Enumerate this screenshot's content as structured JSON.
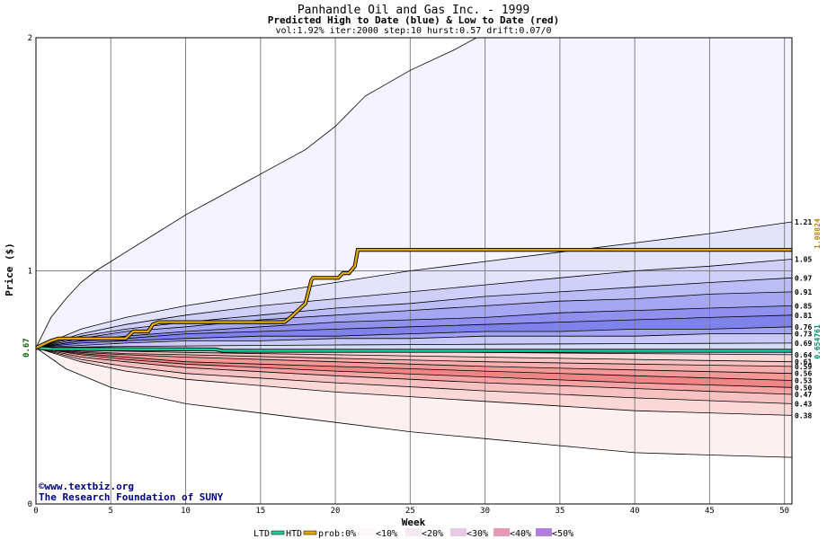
{
  "chart_data": {
    "type": "area",
    "title": "Panhandle Oil and Gas Inc. - 1999",
    "subtitle": "Predicted High to Date (blue) &  Low to Date (red)",
    "params": "vol:1.92% iter:2000 step:10 hurst:0.57 drift:0.07/0",
    "xlabel": "Week",
    "ylabel": "Price ($)",
    "xlim": [
      0,
      50.5
    ],
    "ylim": [
      0,
      2
    ],
    "x_ticks": [
      0,
      5,
      10,
      15,
      20,
      25,
      30,
      35,
      40,
      45,
      50
    ],
    "y_ticks": [
      0,
      1,
      2
    ],
    "start_price": 0.67,
    "start_price_label": "0.67",
    "htd_final_label": "1.08824",
    "ltd_final_label": "0.654761",
    "htd_color": "#b8860b",
    "ltd_color": "#008b6b",
    "credits": [
      "©www.textbiz.org",
      "The Research Foundation of SUNY"
    ],
    "legend": {
      "ltd": "LTD",
      "htd": "HTD",
      "prob_prefix": "prob:0%",
      "items": [
        "<10%",
        "<20%",
        "<30%",
        "<40%",
        "<50%"
      ]
    },
    "high_quantiles": [
      {
        "prob": 0,
        "label": "",
        "final": 2.6,
        "points": [
          [
            0,
            0.67
          ],
          [
            1,
            0.8
          ],
          [
            2,
            0.88
          ],
          [
            3,
            0.95
          ],
          [
            4,
            1.0
          ],
          [
            5,
            1.04
          ],
          [
            6,
            1.08
          ],
          [
            8,
            1.16
          ],
          [
            10,
            1.24
          ],
          [
            12,
            1.31
          ],
          [
            14,
            1.38
          ],
          [
            16,
            1.45
          ],
          [
            18,
            1.52
          ],
          [
            20,
            1.62
          ],
          [
            22,
            1.75
          ],
          [
            25,
            1.86
          ],
          [
            28,
            1.95
          ],
          [
            30,
            2.02
          ],
          [
            40,
            2.3
          ],
          [
            50.5,
            2.6
          ]
        ]
      },
      {
        "prob": 10,
        "label": "1.21",
        "final": 1.21,
        "points": [
          [
            0,
            0.67
          ],
          [
            3,
            0.75
          ],
          [
            6,
            0.8
          ],
          [
            10,
            0.85
          ],
          [
            15,
            0.9
          ],
          [
            20,
            0.95
          ],
          [
            25,
            1.0
          ],
          [
            30,
            1.04
          ],
          [
            35,
            1.08
          ],
          [
            40,
            1.12
          ],
          [
            45,
            1.16
          ],
          [
            50.5,
            1.21
          ]
        ]
      },
      {
        "prob": 20,
        "label": "1.05",
        "final": 1.05,
        "points": [
          [
            0,
            0.67
          ],
          [
            3,
            0.73
          ],
          [
            6,
            0.77
          ],
          [
            10,
            0.81
          ],
          [
            15,
            0.85
          ],
          [
            20,
            0.88
          ],
          [
            25,
            0.91
          ],
          [
            30,
            0.94
          ],
          [
            35,
            0.97
          ],
          [
            40,
            1.0
          ],
          [
            45,
            1.02
          ],
          [
            50.5,
            1.05
          ]
        ]
      },
      {
        "prob": 25,
        "label": "0.97",
        "final": 0.97,
        "points": [
          [
            0,
            0.67
          ],
          [
            3,
            0.72
          ],
          [
            6,
            0.75
          ],
          [
            10,
            0.78
          ],
          [
            15,
            0.81
          ],
          [
            20,
            0.84
          ],
          [
            25,
            0.86
          ],
          [
            30,
            0.89
          ],
          [
            35,
            0.91
          ],
          [
            40,
            0.93
          ],
          [
            45,
            0.95
          ],
          [
            50.5,
            0.97
          ]
        ]
      },
      {
        "prob": 30,
        "label": "0.91",
        "final": 0.91,
        "points": [
          [
            0,
            0.67
          ],
          [
            3,
            0.71
          ],
          [
            6,
            0.74
          ],
          [
            10,
            0.76
          ],
          [
            15,
            0.79
          ],
          [
            20,
            0.81
          ],
          [
            25,
            0.83
          ],
          [
            30,
            0.85
          ],
          [
            35,
            0.87
          ],
          [
            40,
            0.88
          ],
          [
            45,
            0.9
          ],
          [
            50.5,
            0.91
          ]
        ]
      },
      {
        "prob": 35,
        "label": "0.85",
        "final": 0.85,
        "points": [
          [
            0,
            0.67
          ],
          [
            3,
            0.7
          ],
          [
            6,
            0.72
          ],
          [
            10,
            0.74
          ],
          [
            15,
            0.76
          ],
          [
            20,
            0.78
          ],
          [
            25,
            0.79
          ],
          [
            30,
            0.8
          ],
          [
            35,
            0.82
          ],
          [
            40,
            0.83
          ],
          [
            45,
            0.84
          ],
          [
            50.5,
            0.85
          ]
        ]
      },
      {
        "prob": 40,
        "label": "0.81",
        "final": 0.81,
        "points": [
          [
            0,
            0.67
          ],
          [
            3,
            0.7
          ],
          [
            6,
            0.71
          ],
          [
            10,
            0.73
          ],
          [
            15,
            0.74
          ],
          [
            20,
            0.75
          ],
          [
            25,
            0.76
          ],
          [
            30,
            0.77
          ],
          [
            35,
            0.78
          ],
          [
            40,
            0.79
          ],
          [
            45,
            0.8
          ],
          [
            50.5,
            0.81
          ]
        ]
      },
      {
        "prob": 45,
        "label": "0.76",
        "final": 0.76,
        "points": [
          [
            0,
            0.67
          ],
          [
            3,
            0.69
          ],
          [
            6,
            0.7
          ],
          [
            10,
            0.71
          ],
          [
            15,
            0.72
          ],
          [
            20,
            0.72
          ],
          [
            25,
            0.73
          ],
          [
            30,
            0.74
          ],
          [
            35,
            0.74
          ],
          [
            40,
            0.75
          ],
          [
            45,
            0.75
          ],
          [
            50.5,
            0.76
          ]
        ]
      },
      {
        "prob": 48,
        "label": "0.73",
        "final": 0.73,
        "points": [
          [
            0,
            0.67
          ],
          [
            3,
            0.68
          ],
          [
            6,
            0.69
          ],
          [
            10,
            0.7
          ],
          [
            15,
            0.7
          ],
          [
            20,
            0.71
          ],
          [
            25,
            0.71
          ],
          [
            30,
            0.72
          ],
          [
            35,
            0.72
          ],
          [
            40,
            0.72
          ],
          [
            45,
            0.73
          ],
          [
            50.5,
            0.73
          ]
        ]
      },
      {
        "prob": 50,
        "label": "0.69",
        "final": 0.69,
        "points": [
          [
            0,
            0.67
          ],
          [
            5,
            0.675
          ],
          [
            10,
            0.678
          ],
          [
            20,
            0.682
          ],
          [
            30,
            0.685
          ],
          [
            40,
            0.688
          ],
          [
            50.5,
            0.69
          ]
        ]
      }
    ],
    "low_quantiles": [
      {
        "prob": 50,
        "label": "0.64",
        "final": 0.64,
        "points": [
          [
            0,
            0.67
          ],
          [
            5,
            0.665
          ],
          [
            10,
            0.66
          ],
          [
            20,
            0.655
          ],
          [
            30,
            0.65
          ],
          [
            40,
            0.645
          ],
          [
            50.5,
            0.64
          ]
        ]
      },
      {
        "prob": 45,
        "label": "0.61",
        "final": 0.61,
        "points": [
          [
            0,
            0.67
          ],
          [
            3,
            0.66
          ],
          [
            6,
            0.655
          ],
          [
            10,
            0.65
          ],
          [
            20,
            0.64
          ],
          [
            30,
            0.63
          ],
          [
            40,
            0.62
          ],
          [
            50.5,
            0.61
          ]
        ]
      },
      {
        "prob": 40,
        "label": "0.59",
        "final": 0.59,
        "points": [
          [
            0,
            0.67
          ],
          [
            3,
            0.655
          ],
          [
            6,
            0.645
          ],
          [
            10,
            0.64
          ],
          [
            20,
            0.625
          ],
          [
            30,
            0.61
          ],
          [
            40,
            0.6
          ],
          [
            50.5,
            0.59
          ]
        ]
      },
      {
        "prob": 35,
        "label": "0.56",
        "final": 0.56,
        "points": [
          [
            0,
            0.67
          ],
          [
            3,
            0.65
          ],
          [
            6,
            0.64
          ],
          [
            10,
            0.63
          ],
          [
            20,
            0.61
          ],
          [
            30,
            0.59
          ],
          [
            40,
            0.575
          ],
          [
            50.5,
            0.56
          ]
        ]
      },
      {
        "prob": 30,
        "label": "0.53",
        "final": 0.53,
        "points": [
          [
            0,
            0.67
          ],
          [
            3,
            0.645
          ],
          [
            6,
            0.63
          ],
          [
            10,
            0.61
          ],
          [
            20,
            0.59
          ],
          [
            30,
            0.57
          ],
          [
            40,
            0.55
          ],
          [
            50.5,
            0.53
          ]
        ]
      },
      {
        "prob": 25,
        "label": "0.50",
        "final": 0.5,
        "points": [
          [
            0,
            0.67
          ],
          [
            3,
            0.64
          ],
          [
            6,
            0.62
          ],
          [
            10,
            0.6
          ],
          [
            20,
            0.57
          ],
          [
            30,
            0.545
          ],
          [
            40,
            0.52
          ],
          [
            50.5,
            0.5
          ]
        ]
      },
      {
        "prob": 20,
        "label": "0.47",
        "final": 0.47,
        "points": [
          [
            0,
            0.67
          ],
          [
            3,
            0.63
          ],
          [
            6,
            0.61
          ],
          [
            10,
            0.585
          ],
          [
            20,
            0.55
          ],
          [
            30,
            0.52
          ],
          [
            40,
            0.495
          ],
          [
            50.5,
            0.47
          ]
        ]
      },
      {
        "prob": 10,
        "label": "0.43",
        "final": 0.43,
        "points": [
          [
            0,
            0.67
          ],
          [
            3,
            0.62
          ],
          [
            6,
            0.59
          ],
          [
            10,
            0.56
          ],
          [
            20,
            0.52
          ],
          [
            30,
            0.485
          ],
          [
            40,
            0.455
          ],
          [
            50.5,
            0.43
          ]
        ]
      },
      {
        "prob": 5,
        "label": "0.38",
        "final": 0.38,
        "points": [
          [
            0,
            0.67
          ],
          [
            3,
            0.61
          ],
          [
            6,
            0.57
          ],
          [
            10,
            0.535
          ],
          [
            20,
            0.48
          ],
          [
            30,
            0.44
          ],
          [
            40,
            0.4
          ],
          [
            50.5,
            0.38
          ]
        ]
      },
      {
        "prob": 0,
        "label": "",
        "final": 0.2,
        "points": [
          [
            0,
            0.67
          ],
          [
            2,
            0.58
          ],
          [
            5,
            0.5
          ],
          [
            10,
            0.43
          ],
          [
            15,
            0.39
          ],
          [
            20,
            0.35
          ],
          [
            25,
            0.31
          ],
          [
            30,
            0.28
          ],
          [
            35,
            0.25
          ],
          [
            40,
            0.22
          ],
          [
            45,
            0.21
          ],
          [
            50.5,
            0.2
          ]
        ]
      }
    ],
    "htd_series": [
      [
        0,
        0.67
      ],
      [
        1,
        0.7
      ],
      [
        1.5,
        0.71
      ],
      [
        6,
        0.71
      ],
      [
        6.5,
        0.74
      ],
      [
        7.5,
        0.74
      ],
      [
        7.8,
        0.77
      ],
      [
        8.2,
        0.78
      ],
      [
        16.6,
        0.78
      ],
      [
        17,
        0.8
      ],
      [
        17.5,
        0.83
      ],
      [
        18,
        0.86
      ],
      [
        18.4,
        0.96
      ],
      [
        18.5,
        0.97
      ],
      [
        20.2,
        0.97
      ],
      [
        20.5,
        0.99
      ],
      [
        20.9,
        0.99
      ],
      [
        21.3,
        1.02
      ],
      [
        21.5,
        1.09
      ],
      [
        50.5,
        1.09
      ]
    ],
    "ltd_series": [
      [
        0,
        0.67
      ],
      [
        1,
        0.665
      ],
      [
        12,
        0.663
      ],
      [
        12.5,
        0.657
      ],
      [
        50.5,
        0.657
      ]
    ]
  }
}
